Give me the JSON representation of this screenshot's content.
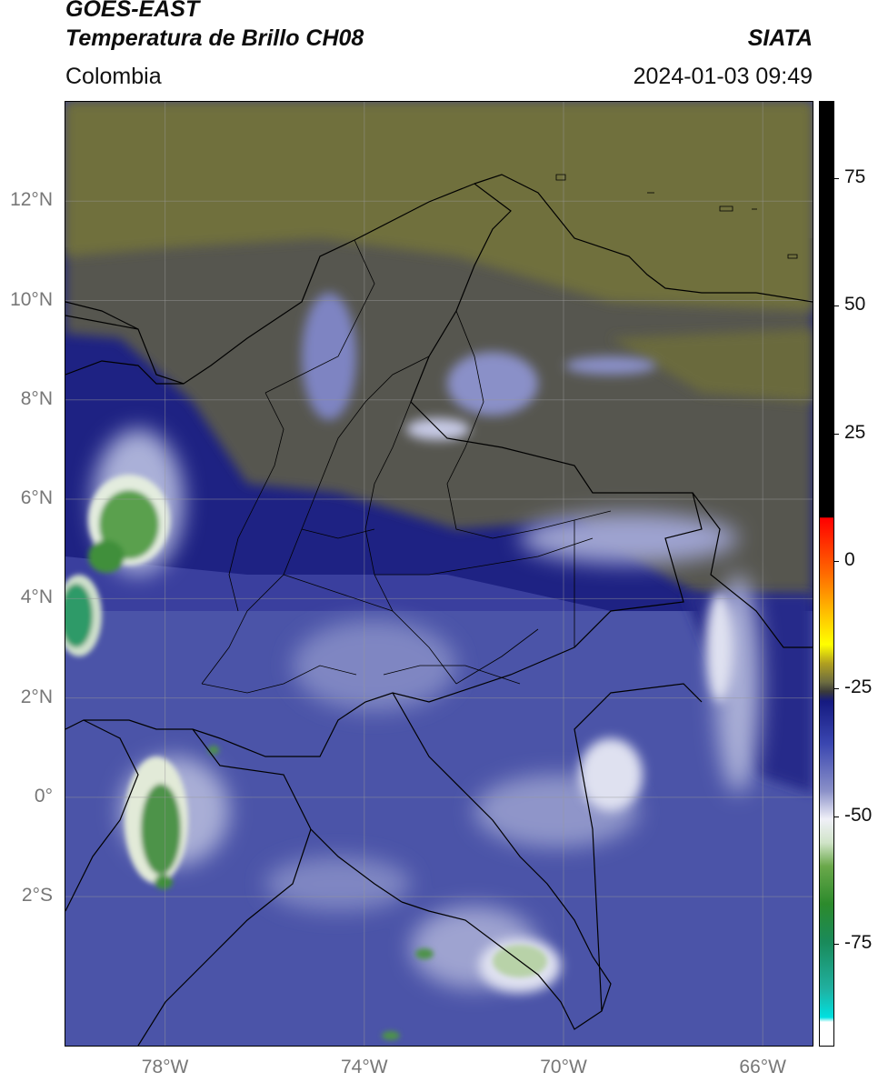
{
  "header": {
    "satellite": "GOES-EAST",
    "product": "Temperatura de Brillo CH08",
    "brand": "SIATA",
    "region": "Colombia",
    "timestamp": "2024-01-03 09:49"
  },
  "map": {
    "lon_range": [
      -80,
      -65
    ],
    "lat_range": [
      -5,
      14
    ],
    "lat_ticks": [
      {
        "value": 12,
        "label": "12°N"
      },
      {
        "value": 10,
        "label": "10°N"
      },
      {
        "value": 8,
        "label": "8°N"
      },
      {
        "value": 6,
        "label": "6°N"
      },
      {
        "value": 4,
        "label": "4°N"
      },
      {
        "value": 2,
        "label": "2°N"
      },
      {
        "value": 0,
        "label": "0°"
      },
      {
        "value": -2,
        "label": "2°S"
      }
    ],
    "lon_ticks": [
      {
        "value": -78,
        "label": "78°W"
      },
      {
        "value": -74,
        "label": "74°W"
      },
      {
        "value": -70,
        "label": "70°W"
      },
      {
        "value": -66,
        "label": "66°W"
      }
    ],
    "colors": {
      "olive_dry": "#6e6e3a",
      "gray_dry": "#57574f",
      "deep_blue": "#1c2080",
      "mid_blue": "#4b55a6",
      "light_blue": "#8c92c8",
      "cloud_white": "#e6e8f2",
      "cold_green": "#3f8f3a",
      "teal": "#2aa070"
    }
  },
  "colorbar": {
    "range": [
      -95,
      90
    ],
    "ticks": [
      {
        "value": 75,
        "label": "75"
      },
      {
        "value": 50,
        "label": "50"
      },
      {
        "value": 25,
        "label": "25"
      },
      {
        "value": 0,
        "label": "0"
      },
      {
        "value": -25,
        "label": "-25"
      },
      {
        "value": -50,
        "label": "-50"
      },
      {
        "value": -75,
        "label": "-75"
      }
    ]
  }
}
